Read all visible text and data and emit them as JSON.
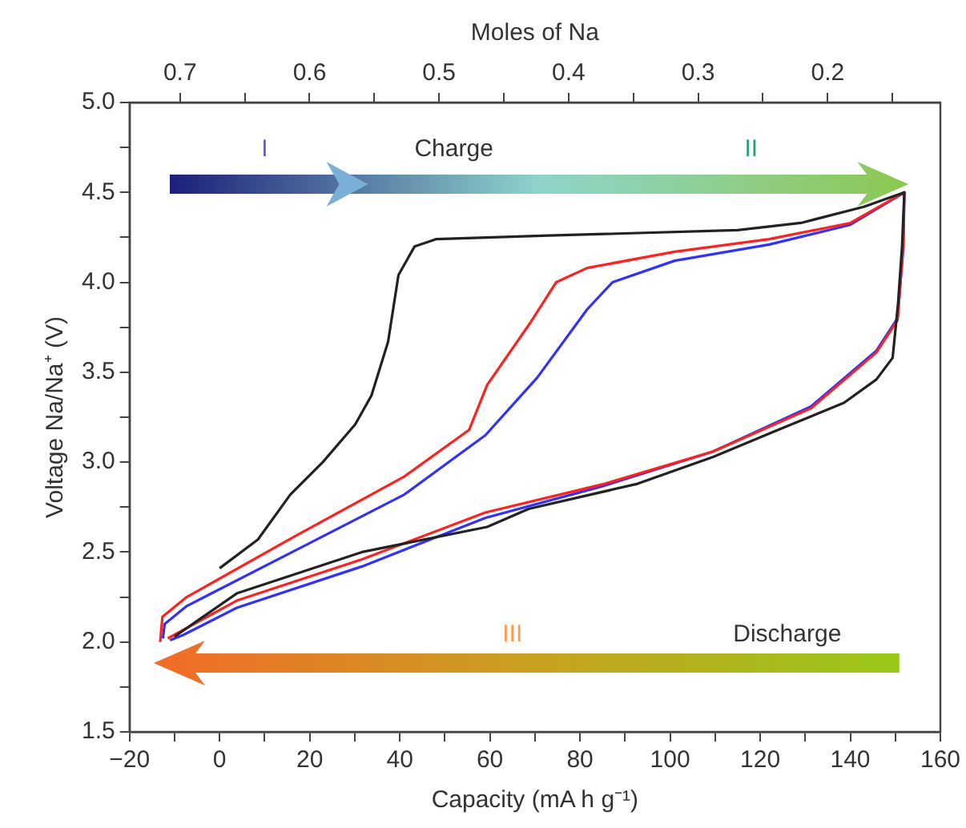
{
  "chart_data": {
    "type": "line",
    "xlabel": "Capacity (mA h g⁻¹)",
    "ylabel": "Voltage Na/Na⁺ (V)",
    "x2label": "Moles of Na",
    "xlim": [
      -20,
      160
    ],
    "xticks": [
      {
        "value": -20,
        "label": "−20"
      },
      {
        "value": -10,
        "label": null
      },
      0,
      {
        "value": 10,
        "label": null
      },
      20,
      {
        "value": 30,
        "label": null
      },
      40,
      {
        "value": 50,
        "label": null
      },
      60,
      {
        "value": 70,
        "label": null
      },
      80,
      {
        "value": 90,
        "label": null
      },
      100,
      {
        "value": 110,
        "label": null
      },
      120,
      {
        "value": 130,
        "label": null
      },
      140,
      {
        "value": 150,
        "label": null
      },
      160
    ],
    "ylim": [
      1.5,
      5.0
    ],
    "yticks": [
      {
        "value": 1.5,
        "label": "1.5"
      },
      {
        "value": 1.75,
        "label": null
      },
      {
        "value": 2.0,
        "label": "2.0"
      },
      {
        "value": 2.25,
        "label": null
      },
      {
        "value": 2.5,
        "label": "2.5"
      },
      {
        "value": 2.75,
        "label": null
      },
      {
        "value": 3.0,
        "label": "3.0"
      },
      {
        "value": 3.25,
        "label": null
      },
      {
        "value": 3.5,
        "label": "3.5"
      },
      {
        "value": 3.75,
        "label": null
      },
      {
        "value": 4.0,
        "label": "4.0"
      },
      {
        "value": 4.25,
        "label": null
      },
      {
        "value": 4.5,
        "label": "4.5"
      },
      {
        "value": 4.75,
        "label": null
      },
      {
        "value": 5.0,
        "label": "5.0"
      }
    ],
    "x2lim": [
      0.739,
      0.113
    ],
    "x2ticks": [
      0.7,
      {
        "value": 0.65,
        "label": null
      },
      0.6,
      {
        "value": 0.55,
        "label": null
      },
      0.5,
      {
        "value": 0.45,
        "label": null
      },
      0.4,
      {
        "value": 0.35,
        "label": null
      },
      0.3,
      {
        "value": 0.25,
        "label": null
      },
      0.2,
      {
        "value": 0.15,
        "label": null
      }
    ],
    "marker": "none",
    "line_style": "solid",
    "series": [
      {
        "color": "#222222",
        "x": [
          0,
          8.5,
          15.7,
          22.9,
          30.1,
          33.7,
          37.4,
          39.7,
          43.3,
          48,
          73,
          115,
          129,
          143,
          152,
          151.5,
          150.6,
          149.4,
          145.8,
          138.6,
          124,
          109.6,
          92.8,
          68.6,
          59.4,
          31.6,
          3.8,
          -10
        ],
        "values": [
          2.41,
          2.57,
          2.82,
          3.0,
          3.21,
          3.37,
          3.67,
          4.04,
          4.2,
          4.24,
          4.26,
          4.29,
          4.33,
          4.42,
          4.5,
          4.2,
          3.88,
          3.58,
          3.46,
          3.33,
          3.18,
          3.03,
          2.88,
          2.74,
          2.64,
          2.5,
          2.27,
          2.03
        ]
      },
      {
        "color": "#ff2020",
        "x": [
          -13.2,
          -12.7,
          -7.3,
          16.9,
          41,
          55.4,
          59.4,
          69.1,
          74.7,
          81.6,
          101,
          122,
          140,
          152,
          151.7,
          150.5,
          145.8,
          131.3,
          109.6,
          85.5,
          59,
          31.6,
          3.8,
          -11.5
        ],
        "values": [
          2.0,
          2.14,
          2.25,
          2.59,
          2.92,
          3.18,
          3.43,
          3.78,
          4.0,
          4.08,
          4.17,
          4.24,
          4.33,
          4.5,
          4.19,
          3.79,
          3.61,
          3.3,
          3.06,
          2.88,
          2.72,
          2.46,
          2.23,
          2.02
        ]
      },
      {
        "color": "#3030ff",
        "x": [
          -12.6,
          -12.2,
          -7.3,
          16.9,
          41,
          59,
          70.5,
          81.6,
          87.2,
          101,
          122,
          140,
          152,
          151.8,
          150.5,
          145.8,
          131.3,
          109.6,
          85.5,
          59,
          31.6,
          3.8,
          -8,
          -11
        ],
        "values": [
          2.02,
          2.1,
          2.2,
          2.51,
          2.82,
          3.15,
          3.47,
          3.85,
          4.0,
          4.12,
          4.21,
          4.32,
          4.5,
          4.2,
          3.8,
          3.62,
          3.31,
          3.06,
          2.87,
          2.69,
          2.42,
          2.19,
          2.04,
          2.01
        ]
      }
    ],
    "annotations": [
      "I",
      "Charge",
      "II",
      "III",
      "Discharge"
    ]
  }
}
